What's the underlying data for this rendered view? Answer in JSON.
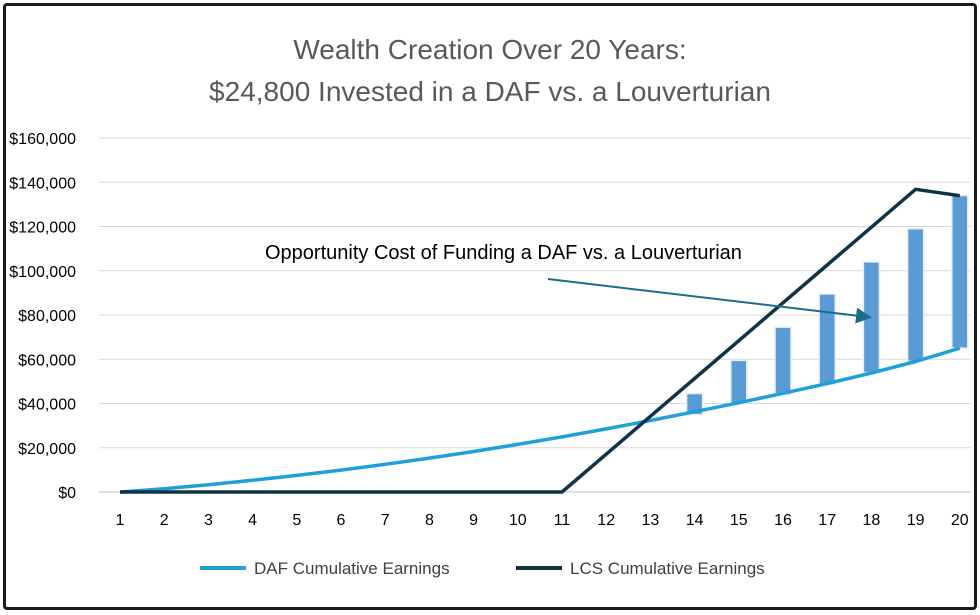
{
  "chart_data": {
    "type": "line",
    "title": "Wealth Creation Over 20 Years:",
    "subtitle": "$24,800 Invested in a DAF vs. a Louverturian",
    "x": [
      1,
      2,
      3,
      4,
      5,
      6,
      7,
      8,
      9,
      10,
      11,
      12,
      13,
      14,
      15,
      16,
      17,
      18,
      19,
      20
    ],
    "ytick_labels": [
      "$0",
      "$20,000",
      "$40,000",
      "$60,000",
      "$80,000",
      "$100,000",
      "$120,000",
      "$140,000",
      "$160,000"
    ],
    "ylim": [
      0,
      160000
    ],
    "grid": true,
    "series": [
      {
        "name": "DAF Cumulative Earnings",
        "color": "#1fa1d8",
        "values": [
          0,
          1500,
          3300,
          5300,
          7500,
          9900,
          12500,
          15300,
          18300,
          21500,
          24900,
          28500,
          32300,
          36300,
          40300,
          44600,
          49000,
          53800,
          59000,
          65000
        ]
      },
      {
        "name": "LCS Cumulative Earnings",
        "color": "#0f3344",
        "values": [
          0,
          0,
          0,
          0,
          0,
          0,
          0,
          0,
          0,
          0,
          0,
          17100,
          34200,
          51300,
          68400,
          85500,
          102600,
          119700,
          136800,
          133900
        ]
      }
    ],
    "gap_bars": {
      "color": "#5b9bd5",
      "x": [
        14,
        15,
        16,
        17,
        18,
        19,
        20
      ],
      "low": [
        35000,
        40000,
        44000,
        48500,
        54000,
        59000,
        65000
      ],
      "high": [
        44500,
        59500,
        74500,
        89500,
        104000,
        119000,
        134000
      ]
    },
    "annotation": "Opportunity Cost of Funding a DAF vs. a Louverturian",
    "legend_position": "bottom"
  }
}
